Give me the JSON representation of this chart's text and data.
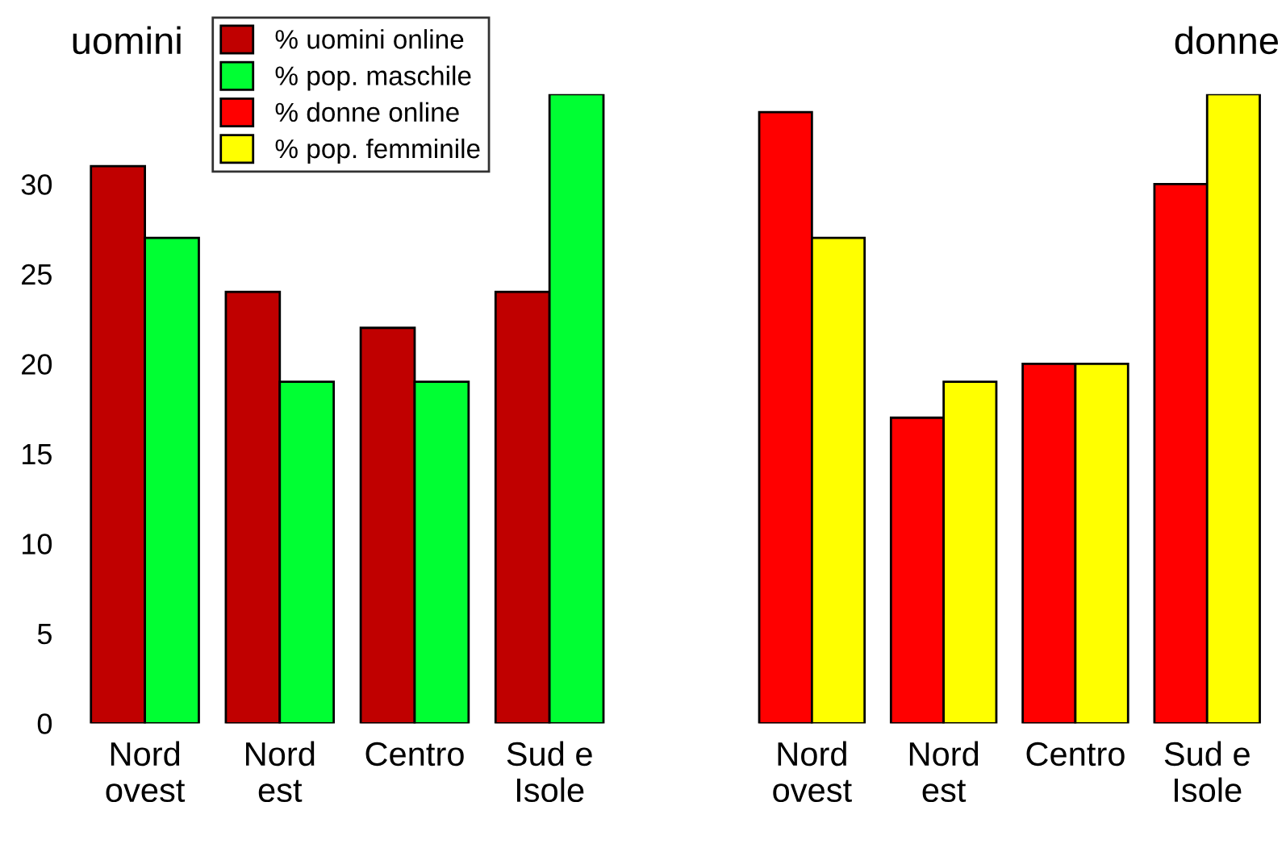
{
  "chart_data": [
    {
      "type": "bar",
      "title": "uomini",
      "categories": [
        "Nord\novest",
        "Nord\nest",
        "Centro",
        "Sud e\nIsole"
      ],
      "series": [
        {
          "name": "% uomini online",
          "color": "#c00000",
          "values": [
            31,
            24,
            22,
            24
          ]
        },
        {
          "name": "% pop. maschile",
          "color": "#00ff33",
          "values": [
            27,
            19,
            19,
            35
          ]
        }
      ],
      "ylim": [
        0,
        35
      ],
      "yticks": [
        0,
        5,
        10,
        15,
        20,
        25,
        30
      ],
      "grid": false,
      "legend": "top"
    },
    {
      "type": "bar",
      "title": "donne",
      "categories": [
        "Nord\novest",
        "Nord\nest",
        "Centro",
        "Sud e\nIsole"
      ],
      "series": [
        {
          "name": "% donne online",
          "color": "#ff0000",
          "values": [
            34,
            17,
            20,
            30
          ]
        },
        {
          "name": "% pop. femminile",
          "color": "#ffff00",
          "values": [
            27,
            19,
            20,
            35
          ]
        }
      ],
      "ylim": [
        0,
        35
      ],
      "yticks": [
        0,
        5,
        10,
        15,
        20,
        25,
        30
      ],
      "tick_labels": "x",
      "grid": false,
      "legend": "top"
    }
  ]
}
